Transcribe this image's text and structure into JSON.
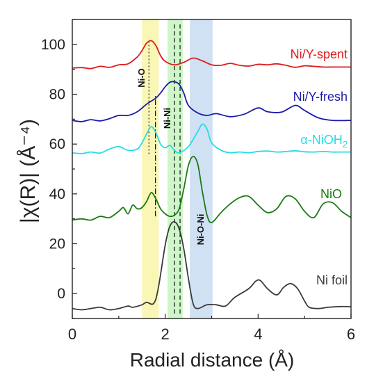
{
  "chart_data": {
    "type": "line",
    "title": "",
    "xlabel": "Radial distance (Å)",
    "ylabel": "|χ(R)| (Å⁻⁴)",
    "xlim": [
      0,
      6
    ],
    "ylim": [
      -10,
      110
    ],
    "x_ticks": [
      0,
      2,
      4,
      6
    ],
    "y_ticks": [
      0,
      20,
      40,
      60,
      80,
      100
    ],
    "grid": false,
    "legend": "inline labels at right of each curve",
    "colors": {
      "Ni/Y-spent": "#dd1c1c",
      "Ni/Y-fresh": "#1a1aaa",
      "α-NiOH2": "#22dde8",
      "NiO": "#1b7a12",
      "Ni foil": "#3a3a3a"
    },
    "shaded_regions": [
      {
        "label": "Ni-O",
        "x_range": [
          1.5,
          1.86
        ],
        "color": "#f4ef7a"
      },
      {
        "label": "Ni-Ni",
        "x_range": [
          2.05,
          2.38
        ],
        "color": "#a6ef9c"
      },
      {
        "label": "Ni-O-Ni",
        "x_range": [
          2.53,
          3.02
        ],
        "color": "#a9c9ea"
      }
    ],
    "region_labels": [
      "Ni-O",
      "Ni-Ni",
      "Ni-O-Ni"
    ],
    "reference_lines": [
      {
        "x": 1.65,
        "style": "dotted",
        "y_range": [
          56,
          102
        ]
      },
      {
        "x": 1.79,
        "style": "dashdot",
        "y_range": [
          31,
          80
        ]
      },
      {
        "x": 2.2,
        "style": "dashed",
        "y_range": [
          -8,
          108
        ]
      },
      {
        "x": 2.32,
        "style": "dashed",
        "y_range": [
          -8,
          108
        ]
      }
    ],
    "series": [
      {
        "name": "Ni/Y-spent",
        "x": [
          0,
          0.2,
          0.4,
          0.6,
          0.8,
          1.0,
          1.2,
          1.4,
          1.5,
          1.6,
          1.7,
          1.8,
          1.9,
          2.0,
          2.2,
          2.4,
          2.6,
          2.8,
          3.0,
          3.2,
          3.4,
          3.6,
          3.8,
          4.0,
          4.2,
          4.4,
          4.6,
          4.8,
          5.0,
          5.2,
          5.4,
          5.6,
          5.8,
          6.0
        ],
        "y": [
          90.5,
          90.7,
          90.3,
          91.2,
          90.8,
          91.8,
          92.2,
          95,
          97.5,
          100.5,
          101.5,
          99.5,
          95.5,
          93.2,
          91.8,
          92.8,
          94.5,
          93.4,
          91.8,
          91.6,
          92.4,
          91.6,
          91.3,
          92,
          91.8,
          92.2,
          91.6,
          90.8,
          91.4,
          91.2,
          90.9,
          90.9,
          90.9,
          90.9
        ]
      },
      {
        "name": "Ni/Y-fresh",
        "x": [
          0,
          0.2,
          0.4,
          0.6,
          0.8,
          1.0,
          1.2,
          1.4,
          1.6,
          1.8,
          1.9,
          2.0,
          2.1,
          2.2,
          2.3,
          2.4,
          2.5,
          2.7,
          2.9,
          3.1,
          3.4,
          3.7,
          4.0,
          4.2,
          4.5,
          4.8,
          5.0,
          5.3,
          5.6,
          6.0
        ],
        "y": [
          69.5,
          69,
          69.8,
          69.3,
          70.2,
          71.5,
          71.5,
          73,
          76,
          78.5,
          80.5,
          83,
          84.8,
          85,
          84,
          80.5,
          75.5,
          72.5,
          71.5,
          72.2,
          71,
          72,
          74.5,
          73,
          72.8,
          75.5,
          73.5,
          70.5,
          69.5,
          69.5
        ]
      },
      {
        "name": "α-NiOH2",
        "x": [
          0,
          0.2,
          0.4,
          0.6,
          0.8,
          1.0,
          1.2,
          1.4,
          1.5,
          1.6,
          1.7,
          1.8,
          1.9,
          2.0,
          2.1,
          2.2,
          2.3,
          2.5,
          2.7,
          2.8,
          2.9,
          3.0,
          3.2,
          3.4,
          3.6,
          3.8,
          4.0,
          4.2,
          4.4,
          4.6,
          4.8,
          5.0,
          5.2,
          5.4,
          5.6,
          5.8,
          6.0
        ],
        "y": [
          56.5,
          56.2,
          56.8,
          56.4,
          58,
          59,
          57.5,
          58,
          60.5,
          64,
          67,
          64.5,
          60,
          58.5,
          59.5,
          57.5,
          56.5,
          59,
          65,
          68,
          66,
          60.5,
          57.5,
          56.5,
          56.8,
          56.5,
          57,
          57.2,
          56.8,
          57,
          57.3,
          56.9,
          56.8,
          57,
          56.8,
          56.8,
          56.8
        ]
      },
      {
        "name": "NiO",
        "x": [
          0,
          0.2,
          0.4,
          0.6,
          0.8,
          1.0,
          1.1,
          1.2,
          1.3,
          1.4,
          1.5,
          1.6,
          1.7,
          1.8,
          1.9,
          2.0,
          2.1,
          2.2,
          2.3,
          2.4,
          2.5,
          2.6,
          2.7,
          2.8,
          2.9,
          3.0,
          3.2,
          3.4,
          3.6,
          3.8,
          4.0,
          4.2,
          4.4,
          4.6,
          4.8,
          5.0,
          5.2,
          5.4,
          5.6,
          5.8,
          6.0
        ],
        "y": [
          29.5,
          30,
          29.5,
          31,
          30.5,
          33,
          34.5,
          32,
          35.5,
          34,
          34.5,
          37,
          40.5,
          38,
          34,
          32,
          31,
          31.5,
          34,
          42,
          51.5,
          55,
          52,
          41,
          31.5,
          28.5,
          32.5,
          36,
          38.5,
          39,
          35.5,
          32.5,
          34,
          39,
          38,
          33,
          30.5,
          36,
          36.5,
          33,
          30.5
        ]
      },
      {
        "name": "Ni foil",
        "x": [
          0,
          0.2,
          0.4,
          0.6,
          0.8,
          1.0,
          1.2,
          1.3,
          1.5,
          1.6,
          1.75,
          1.85,
          2.0,
          2.1,
          2.2,
          2.3,
          2.4,
          2.5,
          2.6,
          2.7,
          2.9,
          3.1,
          3.3,
          3.5,
          3.8,
          3.95,
          4.05,
          4.2,
          4.4,
          4.55,
          4.7,
          4.85,
          5.0,
          5.1,
          5.3,
          5.5,
          5.8,
          6.0
        ],
        "y": [
          -6,
          -6.5,
          -6,
          -5.5,
          -6.5,
          -6,
          -5,
          -5.5,
          -4.5,
          -3.5,
          -4,
          2,
          19.5,
          27,
          28.8,
          26,
          18,
          6,
          -4,
          -6,
          -4.5,
          -4.5,
          -5,
          -1.5,
          2,
          5,
          5.2,
          2,
          -0.5,
          2.5,
          4,
          2,
          -3,
          -5.5,
          -6,
          -5.5,
          -5.2,
          -5.3
        ]
      }
    ]
  }
}
